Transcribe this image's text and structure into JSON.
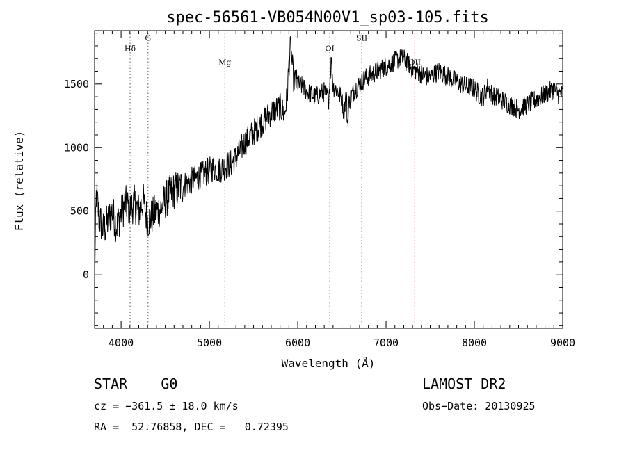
{
  "chart_data": {
    "type": "line",
    "title": "spec-56561-VB054N00V1_sp03-105.fits",
    "xlabel": "Wavelength (Å)",
    "ylabel": "Flux (relative)",
    "xlim": [
      3700,
      9000
    ],
    "ylim": [
      -420,
      1920
    ],
    "xticks": [
      4000,
      5000,
      6000,
      7000,
      8000,
      9000
    ],
    "xtick_labels": [
      "4000",
      "5000",
      "6000",
      "7000",
      "8000",
      "9000"
    ],
    "yticks": [
      0,
      500,
      1000,
      1500
    ],
    "ytick_labels": [
      "0",
      "500",
      "1000",
      "1500"
    ],
    "grid": false,
    "line_color": "#000000",
    "marker_color_absorption": "#555555",
    "marker_color_emission": "#cc3333",
    "lines": [
      {
        "label": "Hδ",
        "wavelength": 4102,
        "kind": "absorption",
        "label_flux": 1760
      },
      {
        "label": "G",
        "wavelength": 4305,
        "kind": "absorption",
        "label_flux": 1840
      },
      {
        "label": "Mg",
        "wavelength": 5175,
        "kind": "absorption",
        "label_flux": 1650
      },
      {
        "label": "OI",
        "wavelength": 6363,
        "kind": "emission",
        "label_flux": 1760
      },
      {
        "label": "SII",
        "wavelength": 6725,
        "kind": "emission",
        "label_flux": 1840
      },
      {
        "label": "OII",
        "wavelength": 7325,
        "kind": "emission",
        "label_flux": 1650
      }
    ],
    "series": [
      {
        "x": [
          3700,
          3720,
          3750,
          3800,
          3850,
          3900,
          3950,
          4000,
          4050,
          4100,
          4150,
          4200,
          4250,
          4300,
          4350,
          4400,
          4450,
          4500,
          4550,
          4600,
          4650,
          4700,
          4750,
          4800,
          4850,
          4900,
          4950,
          5000,
          5050,
          5100,
          5150,
          5200,
          5250,
          5300,
          5350,
          5400,
          5450,
          5500,
          5550,
          5600,
          5650,
          5700,
          5750,
          5800,
          5850,
          5880,
          5900,
          5920,
          5950,
          6000,
          6050,
          6100,
          6150,
          6200,
          6250,
          6300,
          6350,
          6380,
          6400,
          6450,
          6500,
          6520,
          6550,
          6563,
          6580,
          6600,
          6650,
          6700,
          6750,
          6800,
          6850,
          6900,
          6950,
          7000,
          7050,
          7100,
          7150,
          7200,
          7250,
          7300,
          7350,
          7400,
          7450,
          7500,
          7550,
          7600,
          7650,
          7700,
          7750,
          7800,
          7850,
          7900,
          7950,
          8000,
          8050,
          8100,
          8150,
          8200,
          8250,
          8300,
          8350,
          8400,
          8450,
          8500,
          8550,
          8600,
          8650,
          8700,
          8750,
          8800,
          8850,
          8900,
          8950,
          9000
        ],
        "y": [
          0,
          650,
          450,
          350,
          420,
          500,
          380,
          480,
          560,
          520,
          560,
          500,
          580,
          420,
          460,
          500,
          520,
          580,
          640,
          660,
          680,
          700,
          720,
          740,
          760,
          780,
          800,
          820,
          840,
          820,
          840,
          860,
          880,
          920,
          980,
          1040,
          1080,
          1120,
          1160,
          1200,
          1240,
          1280,
          1300,
          1320,
          1260,
          1400,
          1650,
          1800,
          1550,
          1500,
          1480,
          1440,
          1420,
          1400,
          1420,
          1440,
          1380,
          1700,
          1480,
          1450,
          1380,
          1280,
          1420,
          1180,
          1350,
          1400,
          1460,
          1500,
          1540,
          1560,
          1580,
          1600,
          1620,
          1640,
          1660,
          1680,
          1700,
          1700,
          1660,
          1620,
          1600,
          1580,
          1560,
          1560,
          1580,
          1600,
          1580,
          1560,
          1540,
          1520,
          1500,
          1480,
          1480,
          1460,
          1420,
          1400,
          1480,
          1420,
          1400,
          1380,
          1360,
          1340,
          1320,
          1300,
          1320,
          1340,
          1360,
          1380,
          1400,
          1420,
          1440,
          1460,
          1420,
          1420
        ]
      }
    ]
  },
  "footer": {
    "object_class": "STAR    G0",
    "survey": "LAMOST DR2",
    "redshift": "cz = −361.5 ± 18.0 km/s",
    "obs_date": "Obs−Date: 20130925",
    "coords": "RA =  52.76858, DEC =   0.72395"
  }
}
